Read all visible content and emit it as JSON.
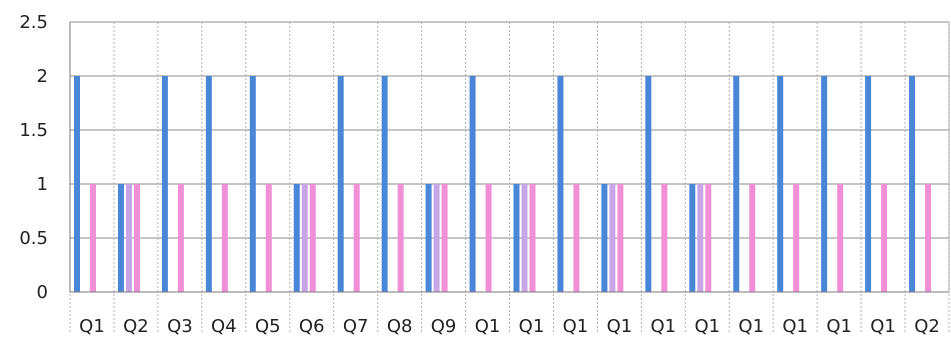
{
  "chart_data": {
    "type": "bar",
    "title": "",
    "xlabel": "",
    "ylabel": "",
    "ylim": [
      0,
      2.5
    ],
    "yticks": [
      "0",
      "0.5",
      "1",
      "1.5",
      "2",
      "2.5"
    ],
    "grid": true,
    "legend": "none",
    "categories": [
      "Q1",
      "Q2",
      "Q3",
      "Q4",
      "Q5",
      "Q6",
      "Q7",
      "Q8",
      "Q9",
      "Q1",
      "Q1",
      "Q1",
      "Q1",
      "Q1",
      "Q1",
      "Q1",
      "Q1",
      "Q1",
      "Q1",
      "Q2"
    ],
    "series": [
      {
        "color": "#4a86d8",
        "values": [
          2,
          1,
          2,
          2,
          2,
          1,
          2,
          2,
          1,
          2,
          1,
          2,
          1,
          2,
          1,
          2,
          2,
          2,
          2,
          2
        ]
      },
      {
        "color": "#c8a6e6",
        "values": [
          null,
          1,
          null,
          null,
          null,
          1,
          null,
          null,
          1,
          null,
          1,
          null,
          1,
          null,
          1,
          null,
          null,
          null,
          null,
          null
        ]
      },
      {
        "color": "#f08ed6",
        "values": [
          1,
          1,
          1,
          1,
          1,
          1,
          1,
          1,
          1,
          1,
          1,
          1,
          1,
          1,
          1,
          1,
          1,
          1,
          1,
          1
        ]
      }
    ]
  }
}
